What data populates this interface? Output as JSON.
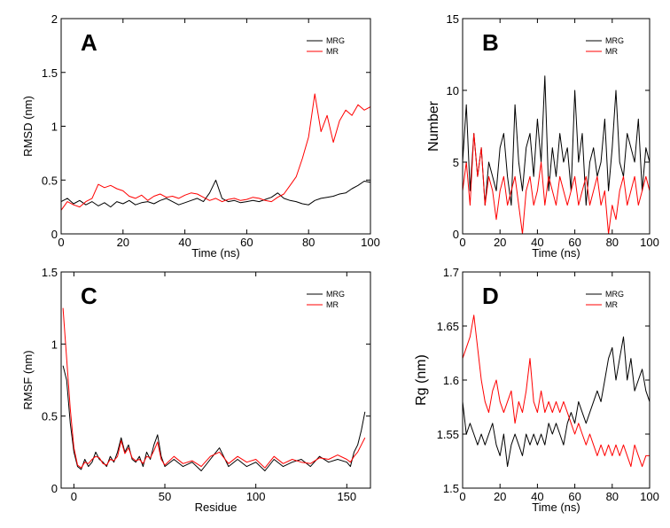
{
  "chart_data": [
    {
      "panel": "A",
      "type": "line",
      "xlabel": "Time (ns)",
      "ylabel": "RMSD (nm)",
      "xlim": [
        0,
        100
      ],
      "ylim": [
        0,
        2
      ],
      "xticks": [
        0,
        20,
        40,
        60,
        80,
        100
      ],
      "yticks": [
        0,
        0.5,
        1,
        1.5,
        2
      ],
      "xticklabels": [
        "0",
        "20",
        "40",
        "60",
        "80",
        "100"
      ],
      "yticklabels": [
        "0",
        "0.5",
        "1",
        "1.5",
        "2"
      ],
      "legend_position": "top-right",
      "series": [
        {
          "name": "MRG",
          "color": "#000000",
          "x": [
            0,
            2,
            4,
            6,
            8,
            10,
            12,
            14,
            16,
            18,
            20,
            22,
            24,
            26,
            28,
            30,
            32,
            34,
            36,
            38,
            40,
            42,
            44,
            46,
            48,
            50,
            52,
            54,
            56,
            58,
            60,
            62,
            64,
            66,
            68,
            70,
            72,
            74,
            76,
            78,
            80,
            82,
            84,
            86,
            88,
            90,
            92,
            94,
            96,
            98,
            100
          ],
          "y": [
            0.3,
            0.33,
            0.28,
            0.31,
            0.27,
            0.3,
            0.26,
            0.29,
            0.25,
            0.3,
            0.28,
            0.31,
            0.27,
            0.29,
            0.3,
            0.28,
            0.31,
            0.33,
            0.3,
            0.27,
            0.29,
            0.31,
            0.33,
            0.3,
            0.38,
            0.5,
            0.33,
            0.3,
            0.31,
            0.29,
            0.3,
            0.31,
            0.3,
            0.32,
            0.34,
            0.38,
            0.33,
            0.31,
            0.3,
            0.28,
            0.27,
            0.31,
            0.33,
            0.34,
            0.35,
            0.37,
            0.38,
            0.42,
            0.45,
            0.49,
            0.48
          ]
        },
        {
          "name": "MR",
          "color": "#ff0000",
          "x": [
            0,
            2,
            4,
            6,
            8,
            10,
            12,
            14,
            16,
            18,
            20,
            22,
            24,
            26,
            28,
            30,
            32,
            34,
            36,
            38,
            40,
            42,
            44,
            46,
            48,
            50,
            52,
            54,
            56,
            58,
            60,
            62,
            64,
            66,
            68,
            70,
            72,
            74,
            76,
            78,
            80,
            82,
            84,
            86,
            88,
            90,
            92,
            94,
            96,
            98,
            100
          ],
          "y": [
            0.22,
            0.3,
            0.27,
            0.25,
            0.3,
            0.33,
            0.46,
            0.43,
            0.45,
            0.42,
            0.4,
            0.35,
            0.33,
            0.36,
            0.31,
            0.35,
            0.37,
            0.34,
            0.35,
            0.33,
            0.36,
            0.38,
            0.37,
            0.34,
            0.31,
            0.33,
            0.3,
            0.32,
            0.33,
            0.31,
            0.32,
            0.34,
            0.33,
            0.31,
            0.3,
            0.34,
            0.37,
            0.45,
            0.53,
            0.7,
            0.9,
            1.3,
            0.95,
            1.1,
            0.85,
            1.05,
            1.15,
            1.1,
            1.2,
            1.15,
            1.18
          ]
        }
      ]
    },
    {
      "panel": "B",
      "type": "line",
      "xlabel": "Time (ns)",
      "ylabel": "Number",
      "xlim": [
        0,
        100
      ],
      "ylim": [
        0,
        15
      ],
      "xticks": [
        0,
        20,
        40,
        60,
        80,
        100
      ],
      "yticks": [
        0,
        5,
        10,
        15
      ],
      "xticklabels": [
        "0",
        "20",
        "40",
        "60",
        "80",
        "100"
      ],
      "yticklabels": [
        "0",
        "5",
        "10",
        "15"
      ],
      "legend_position": "top-right",
      "series": [
        {
          "name": "MRG",
          "color": "#000000",
          "x": [
            0,
            2,
            4,
            6,
            8,
            10,
            12,
            14,
            16,
            18,
            20,
            22,
            24,
            26,
            28,
            30,
            32,
            34,
            36,
            38,
            40,
            42,
            44,
            46,
            48,
            50,
            52,
            54,
            56,
            58,
            60,
            62,
            64,
            66,
            68,
            70,
            72,
            74,
            76,
            78,
            80,
            82,
            84,
            86,
            88,
            90,
            92,
            94,
            96,
            98,
            100
          ],
          "y": [
            5,
            9,
            3,
            7,
            4,
            6,
            2,
            5,
            4,
            3,
            6,
            7,
            4,
            2,
            9,
            5,
            3,
            6,
            7,
            4,
            8,
            5,
            11,
            3,
            6,
            4,
            7,
            5,
            6,
            3,
            10,
            5,
            7,
            2,
            5,
            6,
            4,
            5,
            8,
            3,
            6,
            10,
            5,
            4,
            7,
            6,
            5,
            8,
            3,
            6,
            5
          ]
        },
        {
          "name": "MR",
          "color": "#ff0000",
          "x": [
            0,
            2,
            4,
            6,
            8,
            10,
            12,
            14,
            16,
            18,
            20,
            22,
            24,
            26,
            28,
            30,
            32,
            34,
            36,
            38,
            40,
            42,
            44,
            46,
            48,
            50,
            52,
            54,
            56,
            58,
            60,
            62,
            64,
            66,
            68,
            70,
            72,
            74,
            76,
            78,
            80,
            82,
            84,
            86,
            88,
            90,
            92,
            94,
            96,
            98,
            100
          ],
          "y": [
            3,
            5,
            2,
            7,
            4,
            6,
            2,
            4,
            3,
            1,
            3,
            4,
            2,
            3,
            4,
            2,
            0,
            3,
            4,
            2,
            3,
            5,
            2,
            4,
            3,
            2,
            4,
            3,
            2,
            3,
            4,
            2,
            3,
            4,
            2,
            3,
            4,
            2,
            3,
            0,
            2,
            1,
            3,
            4,
            2,
            3,
            4,
            2,
            3,
            4,
            3
          ]
        }
      ]
    },
    {
      "panel": "C",
      "type": "line",
      "xlabel": "Residue",
      "ylabel": "RMSF (nm)",
      "xlim": [
        -7,
        163
      ],
      "ylim": [
        0,
        1.5
      ],
      "xticks": [
        0,
        50,
        100,
        150
      ],
      "yticks": [
        0,
        0.5,
        1,
        1.5
      ],
      "xticklabels": [
        "0",
        "50",
        "100",
        "150"
      ],
      "yticklabels": [
        "0",
        "0.5",
        "1",
        "1.5"
      ],
      "legend_position": "top-right",
      "series": [
        {
          "name": "MRG",
          "color": "#000000",
          "x": [
            -6,
            -4,
            -2,
            0,
            2,
            4,
            6,
            8,
            10,
            12,
            14,
            16,
            18,
            20,
            22,
            24,
            26,
            28,
            30,
            32,
            34,
            36,
            38,
            40,
            42,
            44,
            46,
            48,
            50,
            55,
            60,
            65,
            70,
            75,
            80,
            85,
            90,
            95,
            100,
            105,
            110,
            115,
            120,
            125,
            130,
            135,
            140,
            145,
            150,
            152,
            154,
            156,
            158,
            160
          ],
          "y": [
            0.85,
            0.75,
            0.45,
            0.25,
            0.15,
            0.13,
            0.2,
            0.15,
            0.18,
            0.25,
            0.2,
            0.18,
            0.15,
            0.22,
            0.18,
            0.25,
            0.35,
            0.25,
            0.3,
            0.2,
            0.18,
            0.22,
            0.15,
            0.25,
            0.2,
            0.3,
            0.37,
            0.22,
            0.15,
            0.2,
            0.15,
            0.18,
            0.12,
            0.2,
            0.28,
            0.15,
            0.2,
            0.15,
            0.18,
            0.12,
            0.2,
            0.15,
            0.18,
            0.2,
            0.15,
            0.22,
            0.18,
            0.2,
            0.18,
            0.15,
            0.25,
            0.3,
            0.4,
            0.53
          ]
        },
        {
          "name": "MR",
          "color": "#ff0000",
          "x": [
            -6,
            -4,
            -2,
            0,
            2,
            4,
            6,
            8,
            10,
            12,
            14,
            16,
            18,
            20,
            22,
            24,
            26,
            28,
            30,
            32,
            34,
            36,
            38,
            40,
            42,
            44,
            46,
            48,
            50,
            55,
            60,
            65,
            70,
            75,
            80,
            85,
            90,
            95,
            100,
            105,
            110,
            115,
            120,
            125,
            130,
            135,
            140,
            145,
            150,
            152,
            154,
            156,
            158,
            160
          ],
          "y": [
            1.25,
            0.9,
            0.55,
            0.28,
            0.16,
            0.14,
            0.18,
            0.17,
            0.2,
            0.22,
            0.21,
            0.17,
            0.16,
            0.2,
            0.19,
            0.22,
            0.33,
            0.24,
            0.28,
            0.21,
            0.19,
            0.2,
            0.17,
            0.22,
            0.21,
            0.26,
            0.32,
            0.2,
            0.16,
            0.22,
            0.17,
            0.19,
            0.15,
            0.22,
            0.25,
            0.17,
            0.22,
            0.18,
            0.2,
            0.14,
            0.22,
            0.17,
            0.2,
            0.18,
            0.17,
            0.21,
            0.2,
            0.23,
            0.2,
            0.18,
            0.22,
            0.25,
            0.3,
            0.35
          ]
        }
      ]
    },
    {
      "panel": "D",
      "type": "line",
      "xlabel": "Time (ns)",
      "ylabel": "Rg (nm)",
      "xlim": [
        0,
        100
      ],
      "ylim": [
        1.5,
        1.7
      ],
      "xticks": [
        0,
        20,
        40,
        60,
        80,
        100
      ],
      "yticks": [
        1.5,
        1.55,
        1.6,
        1.65,
        1.7
      ],
      "xticklabels": [
        "0",
        "20",
        "40",
        "60",
        "80",
        "100"
      ],
      "yticklabels": [
        "1.5",
        "1.55",
        "1.6",
        "1.65",
        "1.7"
      ],
      "legend_position": "top-right",
      "series": [
        {
          "name": "MRG",
          "color": "#000000",
          "x": [
            0,
            2,
            4,
            6,
            8,
            10,
            12,
            14,
            16,
            18,
            20,
            22,
            24,
            26,
            28,
            30,
            32,
            34,
            36,
            38,
            40,
            42,
            44,
            46,
            48,
            50,
            52,
            54,
            56,
            58,
            60,
            62,
            64,
            66,
            68,
            70,
            72,
            74,
            76,
            78,
            80,
            82,
            84,
            86,
            88,
            90,
            92,
            94,
            96,
            98,
            100
          ],
          "y": [
            1.58,
            1.55,
            1.56,
            1.55,
            1.54,
            1.55,
            1.54,
            1.55,
            1.56,
            1.54,
            1.53,
            1.55,
            1.52,
            1.54,
            1.55,
            1.54,
            1.53,
            1.55,
            1.54,
            1.55,
            1.54,
            1.55,
            1.54,
            1.56,
            1.55,
            1.56,
            1.55,
            1.54,
            1.56,
            1.57,
            1.56,
            1.58,
            1.57,
            1.56,
            1.57,
            1.58,
            1.59,
            1.58,
            1.6,
            1.62,
            1.63,
            1.6,
            1.62,
            1.64,
            1.6,
            1.62,
            1.59,
            1.6,
            1.61,
            1.59,
            1.58
          ]
        },
        {
          "name": "MR",
          "color": "#ff0000",
          "x": [
            0,
            2,
            4,
            6,
            8,
            10,
            12,
            14,
            16,
            18,
            20,
            22,
            24,
            26,
            28,
            30,
            32,
            34,
            36,
            38,
            40,
            42,
            44,
            46,
            48,
            50,
            52,
            54,
            56,
            58,
            60,
            62,
            64,
            66,
            68,
            70,
            72,
            74,
            76,
            78,
            80,
            82,
            84,
            86,
            88,
            90,
            92,
            94,
            96,
            98,
            100
          ],
          "y": [
            1.62,
            1.63,
            1.64,
            1.66,
            1.63,
            1.6,
            1.58,
            1.57,
            1.59,
            1.6,
            1.58,
            1.57,
            1.58,
            1.59,
            1.56,
            1.58,
            1.57,
            1.59,
            1.62,
            1.58,
            1.57,
            1.59,
            1.57,
            1.58,
            1.57,
            1.58,
            1.57,
            1.58,
            1.57,
            1.56,
            1.55,
            1.56,
            1.55,
            1.54,
            1.55,
            1.54,
            1.53,
            1.54,
            1.53,
            1.54,
            1.53,
            1.54,
            1.53,
            1.54,
            1.53,
            1.52,
            1.54,
            1.53,
            1.52,
            1.53,
            1.53
          ]
        }
      ]
    }
  ]
}
